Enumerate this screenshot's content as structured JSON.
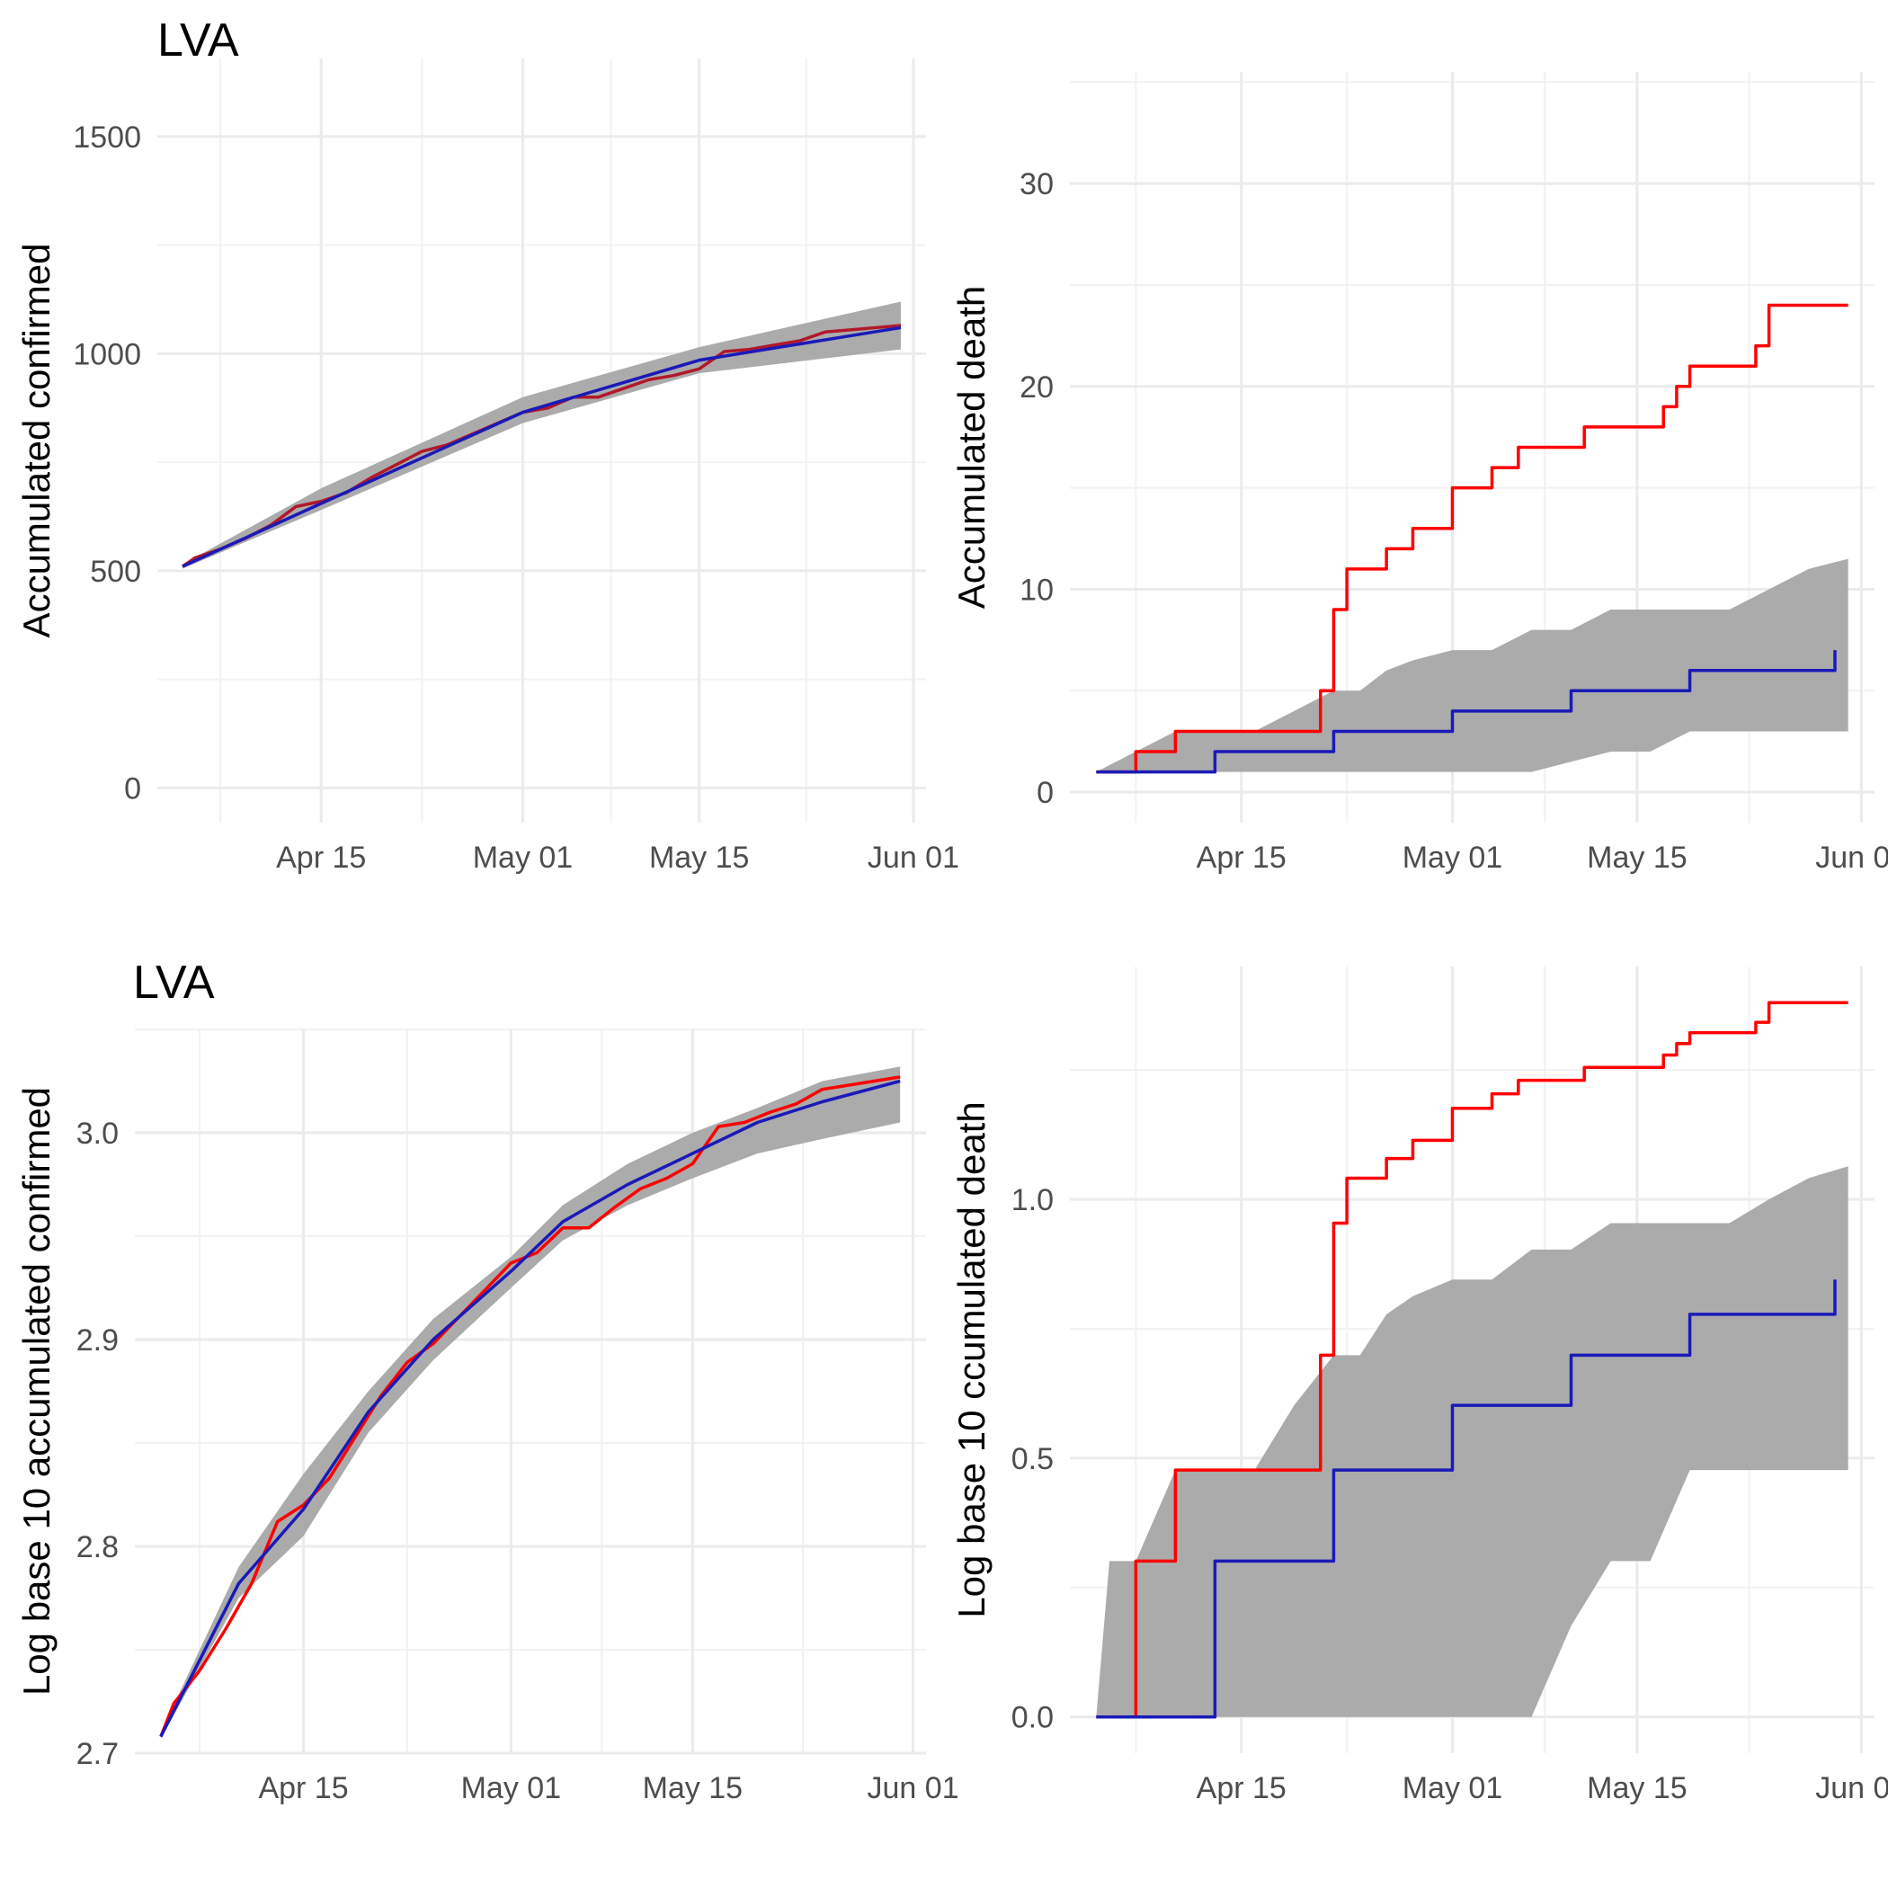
{
  "chart_data": [
    {
      "type": "line",
      "title": "LVA",
      "xlabel": "",
      "ylabel": "Accumulated confirmed",
      "x_tick_labels": [
        "Apr 15",
        "May 01",
        "May 15",
        "Jun 01"
      ],
      "x_tick_dates": [
        "2020-04-15",
        "2020-05-01",
        "2020-05-15",
        "2020-06-01"
      ],
      "xlim": [
        "2020-04-02",
        "2020-06-02"
      ],
      "ylim": [
        -80,
        1680
      ],
      "y_ticks": [
        0,
        500,
        1000,
        1500
      ],
      "y_tick_labels": [
        "0",
        "500",
        "1000",
        "1500"
      ],
      "grid": true,
      "colors": {
        "observed": "#b2182b",
        "fitted": "#1a1ab8",
        "band": "#a6a6a6"
      },
      "band": {
        "x": [
          "2020-04-04",
          "2020-04-15",
          "2020-05-01",
          "2020-05-15",
          "2020-05-31"
        ],
        "lower": [
          505,
          640,
          840,
          955,
          1010
        ],
        "upper": [
          515,
          690,
          900,
          1015,
          1120
        ]
      },
      "series": [
        {
          "x": [
            "2020-04-04",
            "2020-04-05",
            "2020-04-07",
            "2020-04-09",
            "2020-04-11",
            "2020-04-13",
            "2020-04-15",
            "2020-04-17",
            "2020-04-19",
            "2020-04-21",
            "2020-04-23",
            "2020-04-25",
            "2020-04-27",
            "2020-04-29",
            "2020-05-01",
            "2020-05-03",
            "2020-05-05",
            "2020-05-07",
            "2020-05-09",
            "2020-05-11",
            "2020-05-13",
            "2020-05-15",
            "2020-05-17",
            "2020-05-19",
            "2020-05-21",
            "2020-05-23",
            "2020-05-25",
            "2020-05-27",
            "2020-05-29",
            "2020-05-31"
          ],
          "values": [
            510,
            530,
            550,
            575,
            605,
            648,
            660,
            680,
            715,
            745,
            775,
            790,
            815,
            840,
            865,
            875,
            900,
            900,
            920,
            940,
            950,
            965,
            1005,
            1010,
            1020,
            1030,
            1050,
            1055,
            1060,
            1065
          ]
        },
        {
          "x": [
            "2020-04-04",
            "2020-04-15",
            "2020-05-01",
            "2020-05-15",
            "2020-05-31"
          ],
          "values": [
            510,
            655,
            865,
            985,
            1060
          ]
        }
      ]
    },
    {
      "type": "line",
      "title": "",
      "xlabel": "",
      "ylabel": "Accumulated death",
      "x_tick_labels": [
        "Apr 15",
        "May 01",
        "May 15",
        "Jun 01"
      ],
      "x_tick_dates": [
        "2020-04-15",
        "2020-05-01",
        "2020-05-15",
        "2020-06-01"
      ],
      "xlim": [
        "2020-04-02",
        "2020-06-02"
      ],
      "ylim": [
        -1.5,
        35.5
      ],
      "y_ticks": [
        0,
        10,
        20,
        30
      ],
      "y_tick_labels": [
        "0",
        "10",
        "20",
        "30"
      ],
      "grid": true,
      "colors": {
        "observed": "#ff0000",
        "fitted": "#1a1ab8",
        "band": "#a6a6a6"
      },
      "band": {
        "x": [
          "2020-04-04",
          "2020-04-07",
          "2020-04-10",
          "2020-04-13",
          "2020-04-16",
          "2020-04-19",
          "2020-04-22",
          "2020-04-24",
          "2020-04-26",
          "2020-04-28",
          "2020-05-01",
          "2020-05-04",
          "2020-05-07",
          "2020-05-10",
          "2020-05-13",
          "2020-05-16",
          "2020-05-19",
          "2020-05-22",
          "2020-05-25",
          "2020-05-28",
          "2020-05-31"
        ],
        "lower": [
          1,
          1,
          1,
          1,
          1,
          1,
          1,
          1,
          1,
          1,
          1,
          1,
          1,
          1.5,
          2,
          2,
          3,
          3,
          3,
          3,
          3
        ],
        "upper": [
          1,
          2,
          3,
          3,
          3,
          4,
          5,
          5,
          6,
          6.5,
          7,
          7,
          8,
          8,
          9,
          9,
          9,
          9,
          10,
          11,
          11.5
        ]
      },
      "series": [
        {
          "x": [
            "2020-04-04",
            "2020-04-06",
            "2020-04-07",
            "2020-04-08",
            "2020-04-10",
            "2020-04-11",
            "2020-04-21",
            "2020-04-22",
            "2020-04-23",
            "2020-04-24",
            "2020-04-26",
            "2020-04-27",
            "2020-04-28",
            "2020-04-29",
            "2020-05-01",
            "2020-05-04",
            "2020-05-05",
            "2020-05-06",
            "2020-05-11",
            "2020-05-12",
            "2020-05-17",
            "2020-05-18",
            "2020-05-19",
            "2020-05-24",
            "2020-05-25",
            "2020-05-31"
          ],
          "values": [
            1,
            1,
            2,
            2,
            3,
            3,
            5,
            9,
            11,
            11,
            12,
            12,
            13,
            13,
            15,
            16,
            16,
            17,
            18,
            18,
            19,
            20,
            21,
            22,
            24,
            24
          ],
          "step": true
        },
        {
          "x": [
            "2020-04-04",
            "2020-04-13",
            "2020-04-22",
            "2020-05-01",
            "2020-05-10",
            "2020-05-19",
            "2020-05-30"
          ],
          "values": [
            1,
            2,
            3,
            4,
            5,
            6,
            7
          ],
          "step": true
        }
      ]
    },
    {
      "type": "line",
      "title": "LVA",
      "xlabel": "",
      "ylabel": "Log base 10 accumulated confirmed",
      "x_tick_labels": [
        "Apr 15",
        "May 01",
        "May 15",
        "Jun 01"
      ],
      "x_tick_dates": [
        "2020-04-15",
        "2020-05-01",
        "2020-05-15",
        "2020-06-01"
      ],
      "xlim": [
        "2020-04-02",
        "2020-06-02"
      ],
      "ylim": [
        2.7,
        3.05
      ],
      "y_ticks": [
        2.7,
        2.8,
        2.9,
        3.0
      ],
      "y_tick_labels": [
        "2.7",
        "2.8",
        "2.9",
        "3.0"
      ],
      "grid": true,
      "colors": {
        "observed": "#ff0000",
        "fitted": "#1a1ab8",
        "band": "#a6a6a6"
      },
      "band": {
        "x": [
          "2020-04-04",
          "2020-04-10",
          "2020-04-15",
          "2020-04-20",
          "2020-04-25",
          "2020-05-01",
          "2020-05-05",
          "2020-05-10",
          "2020-05-15",
          "2020-05-20",
          "2020-05-25",
          "2020-05-31"
        ],
        "lower": [
          2.707,
          2.775,
          2.805,
          2.855,
          2.89,
          2.925,
          2.948,
          2.965,
          2.978,
          2.99,
          2.997,
          3.005
        ],
        "upper": [
          2.71,
          2.79,
          2.835,
          2.875,
          2.91,
          2.94,
          2.965,
          2.985,
          3.0,
          3.012,
          3.025,
          3.032
        ]
      },
      "series": [
        {
          "x": [
            "2020-04-04",
            "2020-04-05",
            "2020-04-07",
            "2020-04-09",
            "2020-04-11",
            "2020-04-13",
            "2020-04-15",
            "2020-04-17",
            "2020-04-19",
            "2020-04-21",
            "2020-04-23",
            "2020-04-25",
            "2020-04-27",
            "2020-04-29",
            "2020-05-01",
            "2020-05-03",
            "2020-05-05",
            "2020-05-07",
            "2020-05-09",
            "2020-05-11",
            "2020-05-13",
            "2020-05-15",
            "2020-05-17",
            "2020-05-19",
            "2020-05-21",
            "2020-05-23",
            "2020-05-25",
            "2020-05-27",
            "2020-05-29",
            "2020-05-31"
          ],
          "values": [
            2.708,
            2.724,
            2.74,
            2.76,
            2.782,
            2.812,
            2.82,
            2.833,
            2.853,
            2.873,
            2.889,
            2.898,
            2.911,
            2.924,
            2.937,
            2.942,
            2.954,
            2.954,
            2.964,
            2.973,
            2.978,
            2.985,
            3.003,
            3.005,
            3.01,
            3.014,
            3.021,
            3.023,
            3.025,
            3.027
          ]
        },
        {
          "x": [
            "2020-04-04",
            "2020-04-10",
            "2020-04-15",
            "2020-04-20",
            "2020-04-25",
            "2020-05-01",
            "2020-05-05",
            "2020-05-10",
            "2020-05-15",
            "2020-05-20",
            "2020-05-25",
            "2020-05-31"
          ],
          "values": [
            2.708,
            2.782,
            2.818,
            2.865,
            2.9,
            2.933,
            2.957,
            2.975,
            2.99,
            3.005,
            3.015,
            3.025
          ]
        }
      ]
    },
    {
      "type": "line",
      "title": "",
      "xlabel": "",
      "ylabel": "Log base 10 ccumulated death",
      "x_tick_labels": [
        "Apr 15",
        "May 01",
        "May 15",
        "Jun 01"
      ],
      "x_tick_dates": [
        "2020-04-15",
        "2020-05-01",
        "2020-05-15",
        "2020-06-01"
      ],
      "xlim": [
        "2020-04-02",
        "2020-06-02"
      ],
      "ylim": [
        -0.07,
        1.45
      ],
      "y_ticks": [
        0.0,
        0.5,
        1.0
      ],
      "y_tick_labels": [
        "0.0",
        "0.5",
        "1.0"
      ],
      "grid": true,
      "colors": {
        "observed": "#ff0000",
        "fitted": "#1a1ab8",
        "band": "#a6a6a6"
      },
      "band": {
        "x": [
          "2020-04-04",
          "2020-04-05",
          "2020-04-07",
          "2020-04-10",
          "2020-04-13",
          "2020-04-16",
          "2020-04-19",
          "2020-04-22",
          "2020-04-24",
          "2020-04-26",
          "2020-04-28",
          "2020-05-01",
          "2020-05-04",
          "2020-05-07",
          "2020-05-10",
          "2020-05-13",
          "2020-05-16",
          "2020-05-19",
          "2020-05-22",
          "2020-05-25",
          "2020-05-28",
          "2020-05-31"
        ],
        "lower": [
          0,
          0,
          0,
          0,
          0,
          0,
          0,
          0,
          0,
          0,
          0,
          0,
          0,
          0,
          0.176,
          0.301,
          0.301,
          0.477,
          0.477,
          0.477,
          0.477,
          0.477
        ],
        "upper": [
          0,
          0.301,
          0.301,
          0.477,
          0.477,
          0.477,
          0.602,
          0.699,
          0.699,
          0.778,
          0.813,
          0.845,
          0.845,
          0.903,
          0.903,
          0.954,
          0.954,
          0.954,
          0.954,
          1.0,
          1.041,
          1.064
        ]
      },
      "series": [
        {
          "x": [
            "2020-04-04",
            "2020-04-06",
            "2020-04-07",
            "2020-04-08",
            "2020-04-10",
            "2020-04-11",
            "2020-04-21",
            "2020-04-22",
            "2020-04-23",
            "2020-04-24",
            "2020-04-26",
            "2020-04-27",
            "2020-04-28",
            "2020-04-29",
            "2020-05-01",
            "2020-05-04",
            "2020-05-05",
            "2020-05-06",
            "2020-05-11",
            "2020-05-12",
            "2020-05-17",
            "2020-05-18",
            "2020-05-19",
            "2020-05-24",
            "2020-05-25",
            "2020-05-31"
          ],
          "values": [
            0,
            0,
            0.301,
            0.301,
            0.477,
            0.477,
            0.699,
            0.954,
            1.041,
            1.041,
            1.079,
            1.079,
            1.114,
            1.114,
            1.176,
            1.204,
            1.204,
            1.23,
            1.255,
            1.255,
            1.279,
            1.301,
            1.322,
            1.342,
            1.38,
            1.38
          ],
          "step": true
        },
        {
          "x": [
            "2020-04-04",
            "2020-04-13",
            "2020-04-22",
            "2020-05-01",
            "2020-05-10",
            "2020-05-19",
            "2020-05-30"
          ],
          "values": [
            0,
            0.301,
            0.477,
            0.602,
            0.699,
            0.778,
            0.845
          ],
          "step": true
        }
      ]
    }
  ]
}
